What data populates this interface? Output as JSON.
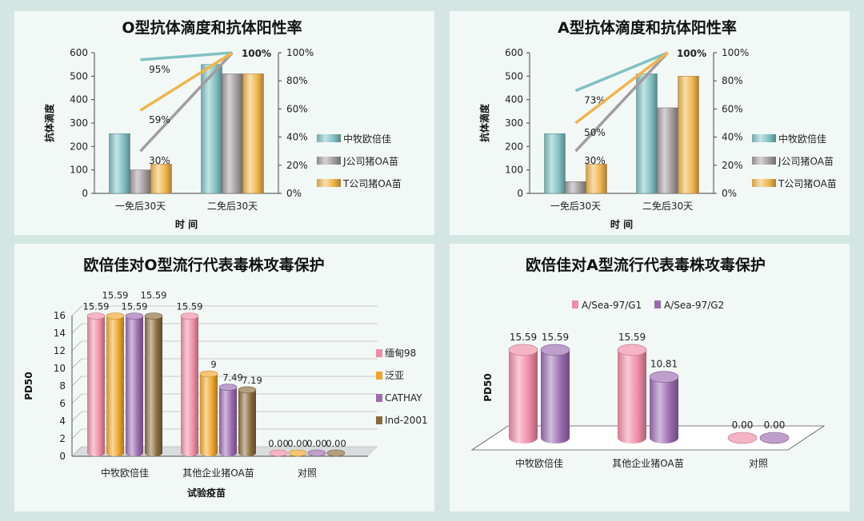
{
  "colors": {
    "teal": "#7fc1c4",
    "gray": "#a39c9e",
    "orange": "#f0b54c",
    "pink": "#f08ca6",
    "amber": "#f0a52a",
    "purple": "#9b6bb0",
    "brown": "#8a6a3a"
  },
  "chart_data": [
    {
      "type": "bar",
      "title": "O型抗体滴度和抗体阳性率",
      "xlabel": "时 间",
      "ylabel": "抗体滴度",
      "categories": [
        "一免后30天",
        "二免后30天"
      ],
      "ylim": [
        0,
        600
      ],
      "yticks": [
        "0",
        "100",
        "200",
        "300",
        "400",
        "500",
        "600"
      ],
      "y2lim": [
        0,
        100
      ],
      "y2ticks": [
        "0%",
        "20%",
        "40%",
        "60%",
        "80%",
        "100%"
      ],
      "series": [
        {
          "name": "中牧欧倍佳",
          "values": [
            255,
            550
          ],
          "rate": [
            95,
            100
          ],
          "rate_label": "95%"
        },
        {
          "name": "J公司猪OA苗",
          "values": [
            100,
            510
          ],
          "rate": [
            30,
            100
          ],
          "rate_label": "30%"
        },
        {
          "name": "T公司猪OA苗",
          "values": [
            125,
            510
          ],
          "rate": [
            59,
            100
          ],
          "rate_label": "59%"
        }
      ],
      "end_label": "100%",
      "legend_position": "right"
    },
    {
      "type": "bar",
      "title": "A型抗体滴度和抗体阳性率",
      "xlabel": "时 间",
      "ylabel": "抗体滴度",
      "categories": [
        "一免后30天",
        "二免后30天"
      ],
      "ylim": [
        0,
        600
      ],
      "yticks": [
        "0",
        "100",
        "200",
        "300",
        "400",
        "500",
        "600"
      ],
      "y2lim": [
        0,
        100
      ],
      "y2ticks": [
        "0%",
        "20%",
        "40%",
        "60%",
        "80%",
        "100%"
      ],
      "series": [
        {
          "name": "中牧欧倍佳",
          "values": [
            255,
            510
          ],
          "rate": [
            73,
            100
          ],
          "rate_label": "73%"
        },
        {
          "name": "J公司猪OA苗",
          "values": [
            50,
            365
          ],
          "rate": [
            30,
            100
          ],
          "rate_label": "30%"
        },
        {
          "name": "T公司猪OA苗",
          "values": [
            125,
            500
          ],
          "rate": [
            50,
            100
          ],
          "rate_label": "50%"
        }
      ],
      "end_label": "100%",
      "legend_position": "right"
    },
    {
      "type": "bar",
      "title": "欧倍佳对O型流行代表毒株攻毒保护",
      "xlabel": "试验疫苗",
      "ylabel": "PD50",
      "categories": [
        "中牧欧倍佳",
        "其他企业猪OA苗",
        "对照"
      ],
      "ylim": [
        0,
        16
      ],
      "yticks": [
        "0",
        "2",
        "4",
        "6",
        "8",
        "10",
        "12",
        "14",
        "16"
      ],
      "series": [
        {
          "name": "缅甸98",
          "values": [
            15.59,
            15.59,
            0
          ],
          "labels": [
            "15.59",
            "15.59",
            "0.00"
          ]
        },
        {
          "name": "泛亚",
          "values": [
            15.59,
            9,
            0
          ],
          "labels": [
            "15.59",
            "9",
            "0.00"
          ]
        },
        {
          "name": "CATHAY",
          "values": [
            15.59,
            7.49,
            0
          ],
          "labels": [
            "15.59",
            "7.49",
            "0.00"
          ]
        },
        {
          "name": "Ind-2001",
          "values": [
            15.59,
            7.19,
            0
          ],
          "labels": [
            "15.59",
            "7.19",
            "0.00"
          ]
        }
      ],
      "legend_position": "right"
    },
    {
      "type": "bar",
      "title": "欧倍佳对A型流行代表毒株攻毒保护",
      "xlabel": "",
      "ylabel": "PD50",
      "categories": [
        "中牧欧倍佳",
        "其他企业猪OA苗",
        "对照"
      ],
      "ylim": [
        0,
        16
      ],
      "series": [
        {
          "name": "A/Sea-97/G1",
          "values": [
            15.59,
            15.59,
            0
          ],
          "labels": [
            "15.59",
            "15.59",
            "0.00"
          ]
        },
        {
          "name": "A/Sea-97/G2",
          "values": [
            15.59,
            10.81,
            0
          ],
          "labels": [
            "15.59",
            "10.81",
            "0.00"
          ]
        }
      ],
      "legend_position": "top"
    }
  ]
}
